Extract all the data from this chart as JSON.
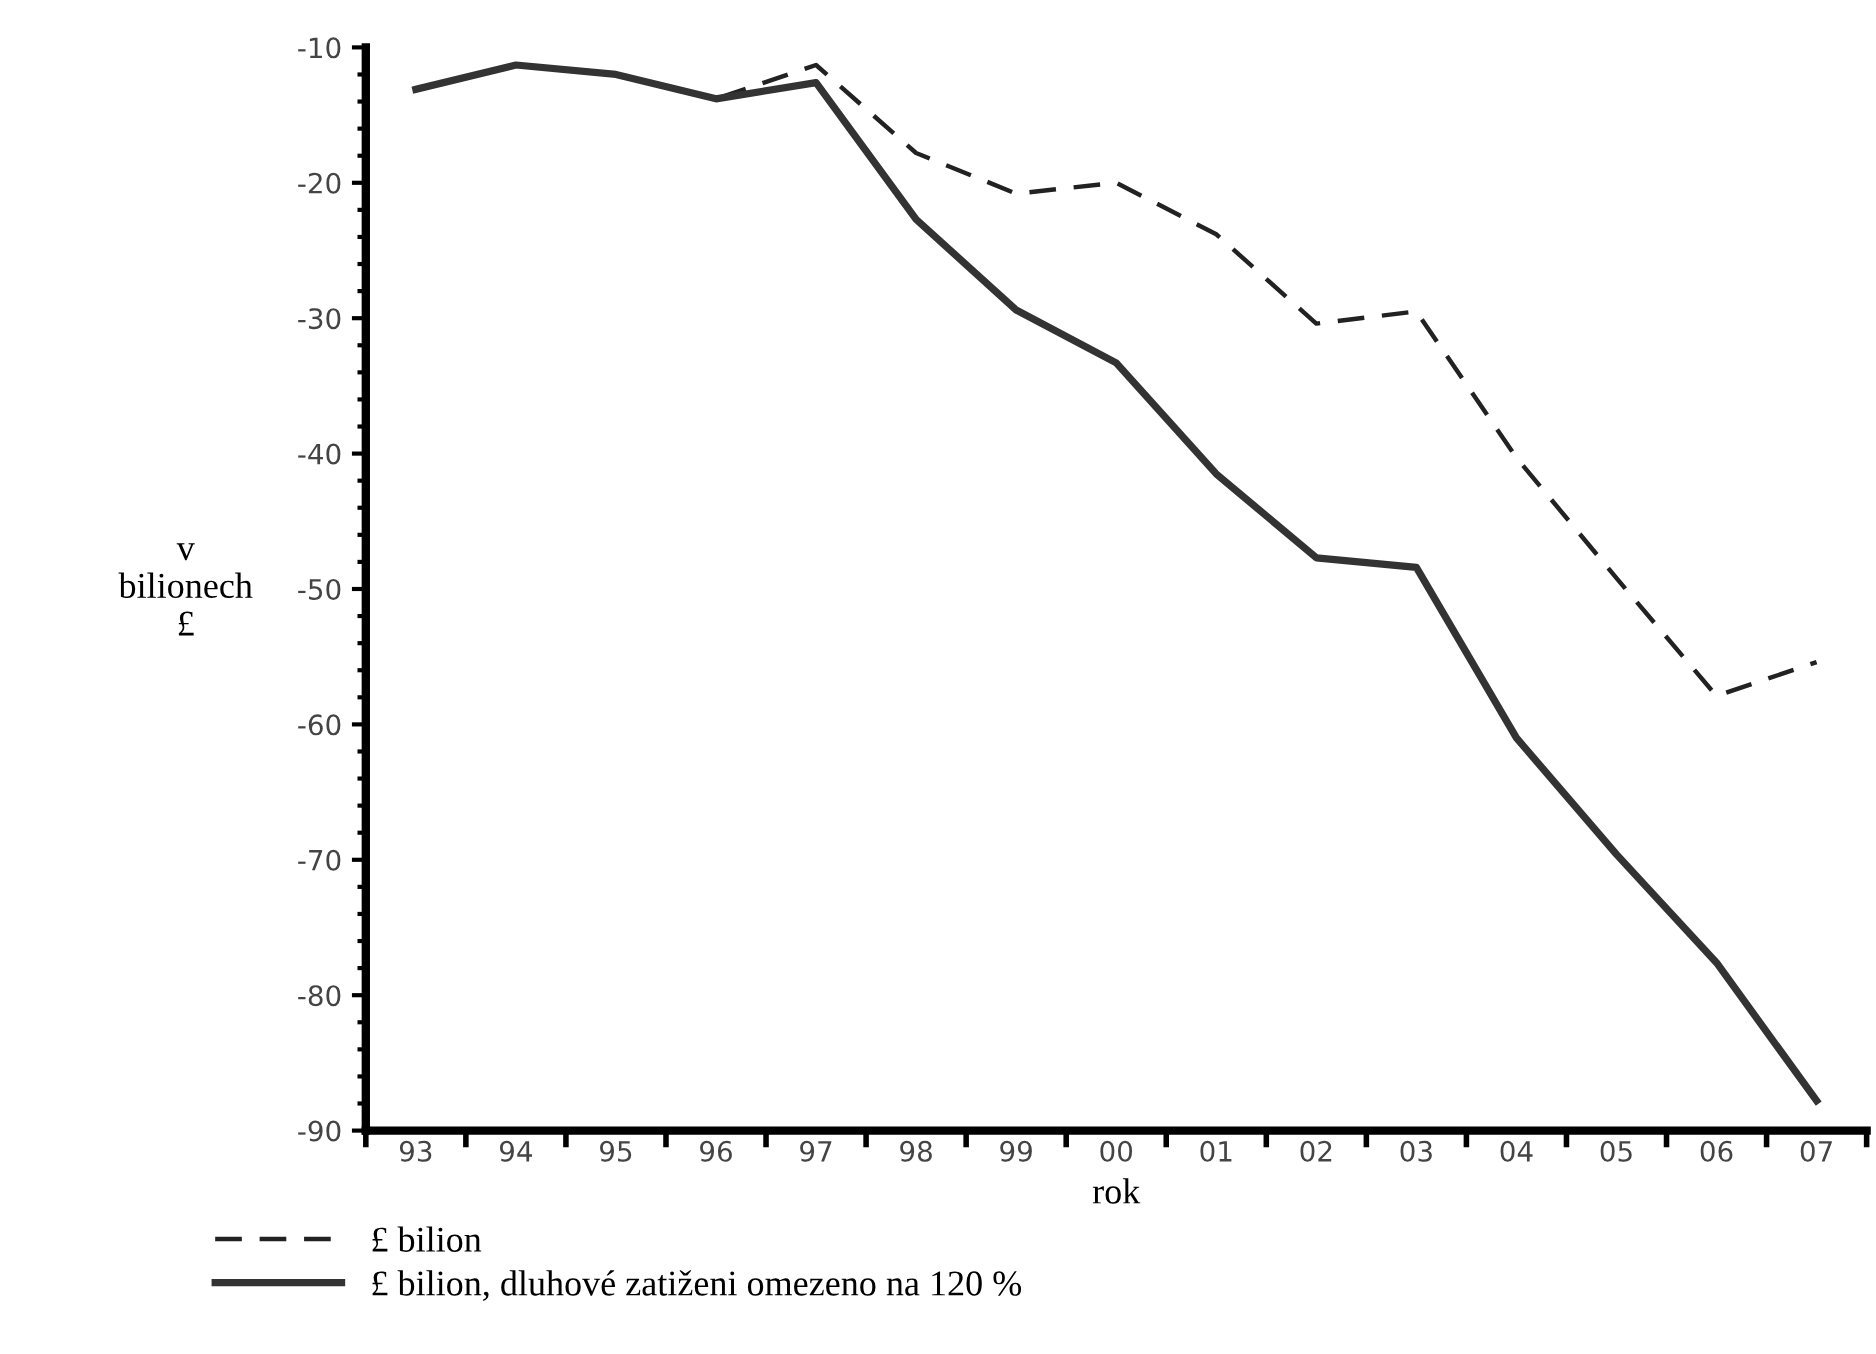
{
  "chart_data": {
    "type": "line",
    "xlabel": "rok",
    "ylabel": "v\nbilionech\n£",
    "categories": [
      "93",
      "94",
      "95",
      "96",
      "97",
      "98",
      "99",
      "00",
      "01",
      "02",
      "03",
      "04",
      "05",
      "06",
      "07"
    ],
    "series": [
      {
        "name": "£ bilion",
        "color": "#222222",
        "line_style": "dashed",
        "values": [
          -13.1,
          -11.3,
          -12,
          -13.8,
          -11.3,
          -17.8,
          -20.8,
          -20,
          -23.8,
          -30.4,
          -29.5,
          -40.3,
          -49.2,
          -57.9,
          -55.4
        ]
      },
      {
        "name": "£ bilion, dluhové zatiženi omezeno na 120 %",
        "color": "#333333",
        "line_style": "solid",
        "values": [
          -13.1,
          -11.3,
          -12,
          -13.8,
          -12.6,
          -22.7,
          -29.4,
          -33.3,
          -41.5,
          -47.7,
          -48.4,
          -61,
          -69.6,
          -77.6,
          -87.8
        ]
      }
    ],
    "ylim": [
      -90,
      -10
    ],
    "yticks": [
      {
        "value": -90,
        "label": "-90"
      },
      {
        "value": -80,
        "label": "-80"
      },
      {
        "value": -70,
        "label": "-70"
      },
      {
        "value": -60,
        "label": "-60"
      },
      {
        "value": -50,
        "label": "-50"
      },
      {
        "value": -40,
        "label": "-40"
      },
      {
        "value": -30,
        "label": "-30"
      },
      {
        "value": -20,
        "label": "-20"
      },
      {
        "value": -10,
        "label": "-10"
      }
    ],
    "grid": false,
    "legend": "bottom left"
  }
}
